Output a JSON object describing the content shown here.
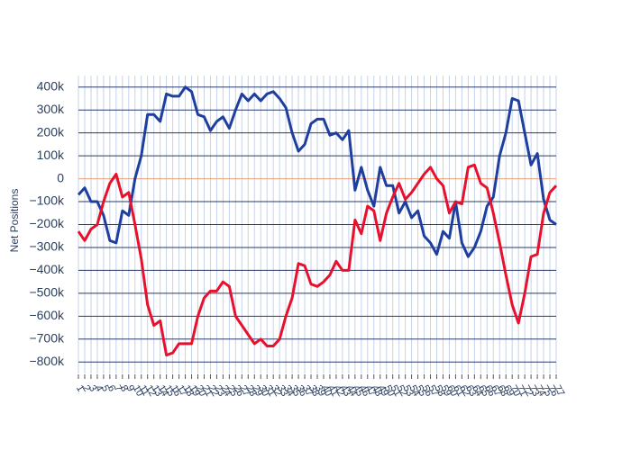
{
  "chart_data": {
    "type": "line",
    "y_label": "Net Positions",
    "x": [
      1,
      2,
      3,
      4,
      5,
      6,
      7,
      8,
      9,
      10,
      11,
      12,
      13,
      14,
      15,
      16,
      17,
      18,
      19,
      20,
      21,
      22,
      23,
      24,
      25,
      26,
      27,
      28,
      29,
      30,
      31,
      32,
      33,
      34,
      35,
      36,
      37,
      38,
      39,
      40,
      41,
      42,
      43,
      44,
      45,
      46,
      47,
      48,
      49,
      50,
      51,
      52,
      53,
      54,
      55,
      56,
      57,
      58,
      59,
      60,
      61,
      62,
      63,
      64,
      65,
      66,
      67,
      68,
      69,
      70,
      71,
      72,
      73,
      74,
      75,
      76,
      77
    ],
    "xlim": [
      1,
      77
    ],
    "xticks": [
      1,
      2,
      3,
      4,
      5,
      6,
      7,
      8,
      9,
      10,
      11,
      12,
      13,
      14,
      15,
      16,
      17,
      18,
      19,
      20,
      21,
      22,
      23,
      24,
      25,
      26,
      27,
      28,
      29,
      30,
      31,
      32,
      33,
      34,
      35,
      36,
      37,
      38,
      39,
      40,
      41,
      42,
      43,
      44,
      45,
      46,
      47,
      48,
      49,
      50,
      51,
      52,
      53,
      54,
      55,
      56,
      57,
      58,
      59,
      60,
      61,
      62,
      63,
      64,
      65,
      66,
      67,
      68,
      69,
      70,
      71,
      72,
      73,
      74,
      75,
      76,
      77
    ],
    "ylim": [
      -850000,
      450000
    ],
    "yticks": [
      {
        "value": 400000,
        "label": "400k"
      },
      {
        "value": 300000,
        "label": "300k"
      },
      {
        "value": 200000,
        "label": "200k"
      },
      {
        "value": 100000,
        "label": "100k"
      },
      0,
      {
        "value": -100000,
        "label": "−100k"
      },
      {
        "value": -200000,
        "label": "−200k"
      },
      {
        "value": -300000,
        "label": "−300k"
      },
      {
        "value": -400000,
        "label": "−400k"
      },
      {
        "value": -500000,
        "label": "−500k"
      },
      {
        "value": -600000,
        "label": "−600k"
      },
      {
        "value": -700000,
        "label": "−700k"
      },
      {
        "value": -800000,
        "label": "−800k"
      }
    ],
    "grid": true,
    "zero_line_color": "#e8a07a",
    "series": [
      {
        "color": "#1f3f9f",
        "values": [
          -70000,
          -40000,
          -100000,
          -100000,
          -160000,
          -270000,
          -280000,
          -140000,
          -160000,
          0,
          100000,
          280000,
          280000,
          250000,
          370000,
          360000,
          360000,
          400000,
          380000,
          280000,
          270000,
          210000,
          250000,
          270000,
          220000,
          300000,
          370000,
          340000,
          370000,
          340000,
          370000,
          380000,
          350000,
          310000,
          200000,
          120000,
          150000,
          240000,
          260000,
          260000,
          190000,
          200000,
          170000,
          210000,
          -50000,
          50000,
          -50000,
          -120000,
          50000,
          -30000,
          -30000,
          -150000,
          -100000,
          -170000,
          -140000,
          -250000,
          -280000,
          -330000,
          -230000,
          -260000,
          -100000,
          -280000,
          -340000,
          -300000,
          -230000,
          -120000,
          -80000,
          100000,
          200000,
          350000,
          340000,
          200000,
          60000,
          110000,
          -90000,
          -180000,
          -200000
        ]
      },
      {
        "color": "#e8112d",
        "values": [
          -230000,
          -270000,
          -220000,
          -200000,
          -100000,
          -20000,
          20000,
          -80000,
          -60000,
          -200000,
          -350000,
          -550000,
          -640000,
          -620000,
          -770000,
          -760000,
          -720000,
          -720000,
          -720000,
          -600000,
          -520000,
          -490000,
          -490000,
          -450000,
          -470000,
          -600000,
          -640000,
          -680000,
          -720000,
          -700000,
          -730000,
          -730000,
          -700000,
          -600000,
          -520000,
          -370000,
          -380000,
          -460000,
          -470000,
          -450000,
          -420000,
          -360000,
          -400000,
          -400000,
          -180000,
          -240000,
          -120000,
          -140000,
          -270000,
          -150000,
          -80000,
          -20000,
          -90000,
          -60000,
          -20000,
          20000,
          50000,
          0,
          -30000,
          -150000,
          -100000,
          -110000,
          50000,
          60000,
          -20000,
          -40000,
          -150000,
          -280000,
          -420000,
          -550000,
          -630000,
          -500000,
          -340000,
          -330000,
          -150000,
          -60000,
          -30000
        ]
      }
    ]
  }
}
